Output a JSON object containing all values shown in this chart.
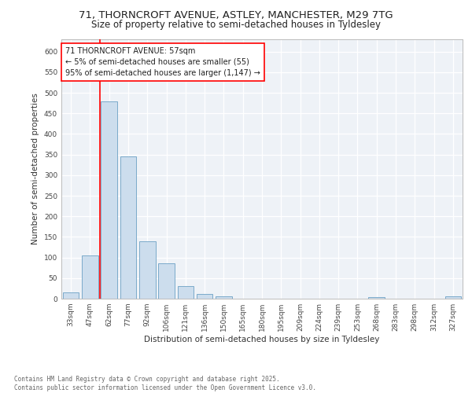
{
  "title_line1": "71, THORNCROFT AVENUE, ASTLEY, MANCHESTER, M29 7TG",
  "title_line2": "Size of property relative to semi-detached houses in Tyldesley",
  "xlabel": "Distribution of semi-detached houses by size in Tyldesley",
  "ylabel": "Number of semi-detached properties",
  "footer": "Contains HM Land Registry data © Crown copyright and database right 2025.\nContains public sector information licensed under the Open Government Licence v3.0.",
  "bar_labels": [
    "33sqm",
    "47sqm",
    "62sqm",
    "77sqm",
    "92sqm",
    "106sqm",
    "121sqm",
    "136sqm",
    "150sqm",
    "165sqm",
    "180sqm",
    "195sqm",
    "209sqm",
    "224sqm",
    "239sqm",
    "253sqm",
    "268sqm",
    "283sqm",
    "298sqm",
    "312sqm",
    "327sqm"
  ],
  "bar_values": [
    15,
    105,
    480,
    345,
    140,
    85,
    30,
    11,
    6,
    0,
    0,
    0,
    0,
    0,
    0,
    0,
    4,
    0,
    0,
    0,
    5
  ],
  "bar_color": "#ccdded",
  "bar_edge_color": "#7aaaca",
  "annotation_text": "71 THORNCROFT AVENUE: 57sqm\n← 5% of semi-detached houses are smaller (55)\n95% of semi-detached houses are larger (1,147) →",
  "redline_x": 1.5,
  "ylim": [
    0,
    630
  ],
  "yticks": [
    0,
    50,
    100,
    150,
    200,
    250,
    300,
    350,
    400,
    450,
    500,
    550,
    600
  ],
  "plot_bg_color": "#eef2f7",
  "title_fontsize": 9.5,
  "subtitle_fontsize": 8.5,
  "ann_fontsize": 7.0,
  "ylabel_fontsize": 7.5,
  "xlabel_fontsize": 7.5,
  "tick_fontsize": 6.5,
  "footer_fontsize": 5.5
}
